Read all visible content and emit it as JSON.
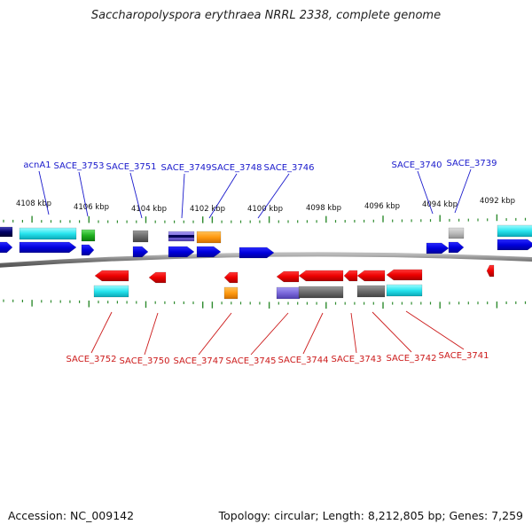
{
  "title": "Saccharopolyspora erythraea NRRL 2338, complete genome",
  "footer": {
    "accession": "Accession: NC_009142",
    "summary": "Topology: circular; Length: 8,212,805 bp; Genes: 7,259"
  },
  "axis": {
    "upper_ticks": [
      "4108 kbp",
      "4106 kbp",
      "4104 kbp",
      "4102 kbp",
      "4100 kbp",
      "4098 kbp",
      "4096 kbp",
      "4094 kbp",
      "4092 kbp"
    ]
  },
  "colors": {
    "forward_label": "#1a1acc",
    "reverse_label": "#cc1a1a",
    "backbone": "#777777",
    "tick": "#2e8b2e"
  },
  "labels": {
    "forward": [
      "acnA1",
      "SACE_3753",
      "SACE_3751",
      "SACE_3749",
      "SACE_3748",
      "SACE_3746",
      "SACE_3740",
      "SACE_3739"
    ],
    "reverse": [
      "SACE_3752",
      "SACE_3750",
      "SACE_3747",
      "SACE_3745",
      "SACE_3744",
      "SACE_3743",
      "SACE_3742",
      "SACE_3741"
    ]
  }
}
